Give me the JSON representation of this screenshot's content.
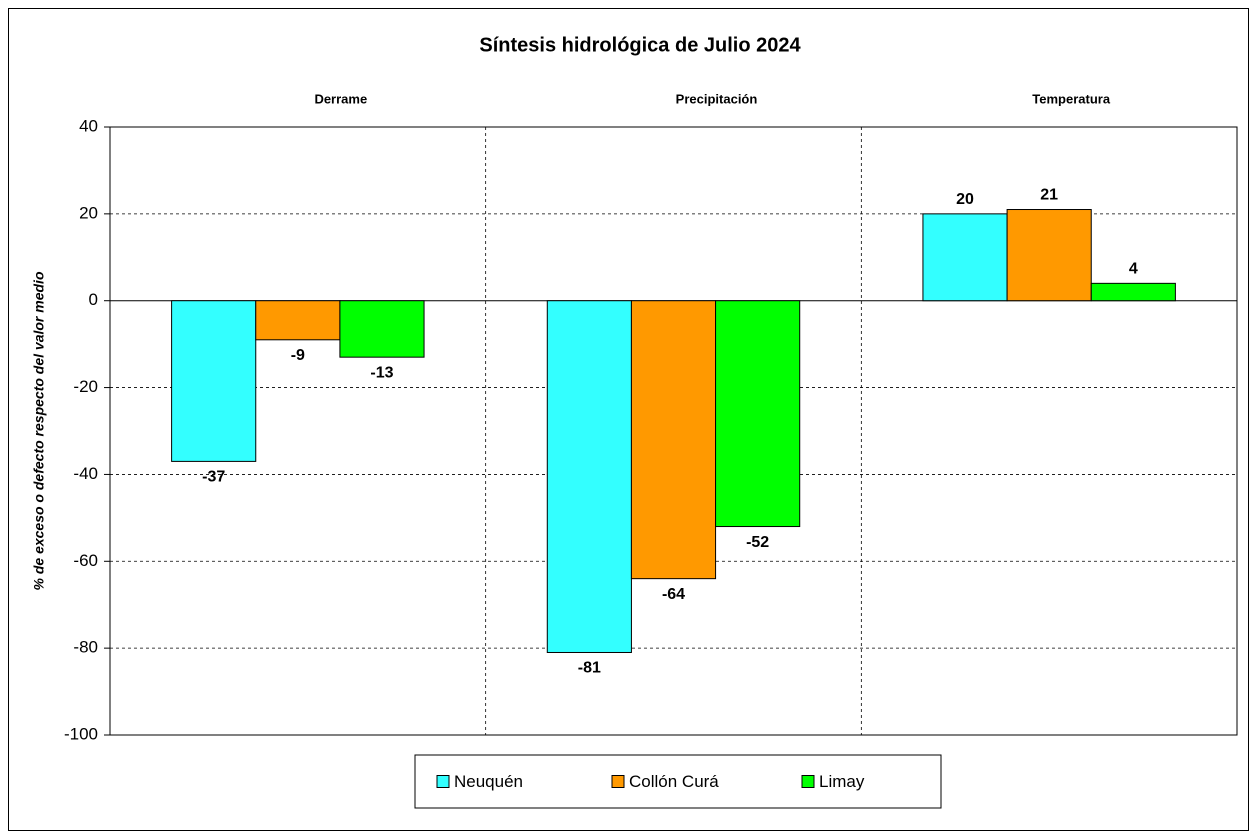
{
  "chart_data": {
    "type": "bar",
    "title": "Síntesis hidrológica de Julio 2024",
    "y_label": "% de exceso o defecto respecto del valor medio",
    "categories": [
      "Derrame",
      "Precipitación",
      "Temperatura"
    ],
    "series": [
      {
        "name": "Neuquén",
        "color": "#33ffff",
        "label_color": "#000000",
        "values": [
          -37,
          -81,
          20
        ]
      },
      {
        "name": "Collón Curá",
        "color": "#ff9900",
        "label_color": "#1f4f1f",
        "values": [
          -9,
          -64,
          21
        ]
      },
      {
        "name": "Limay",
        "color": "#00ff00",
        "label_color": "#000000",
        "values": [
          -13,
          -52,
          4
        ]
      }
    ],
    "ylim": [
      -100,
      40
    ],
    "yticks": [
      -100,
      -80,
      -60,
      -40,
      -20,
      0,
      20,
      40
    ],
    "grid": true,
    "legend": "bottom"
  }
}
